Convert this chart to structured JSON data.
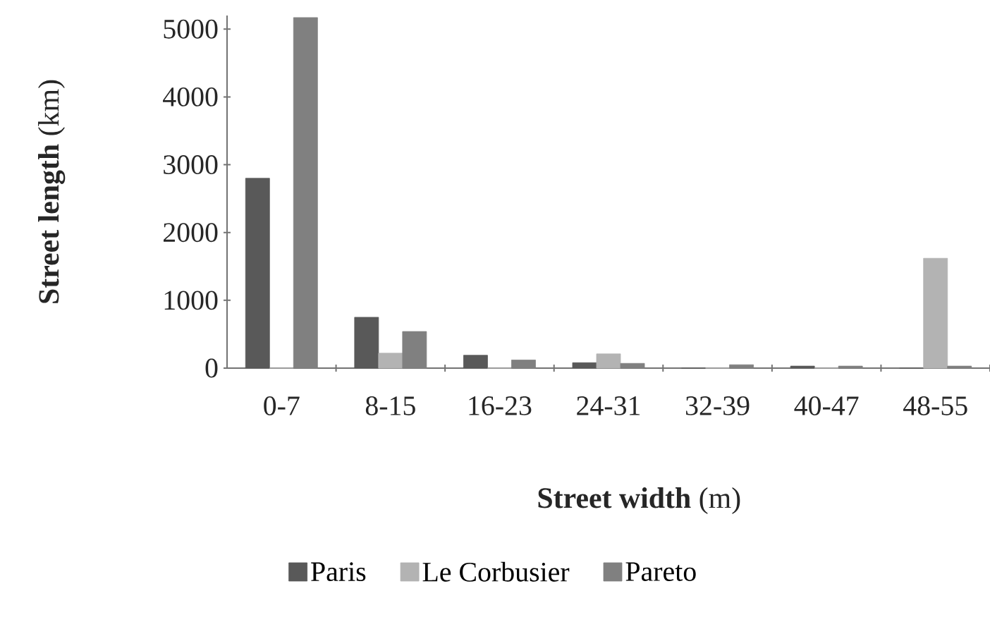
{
  "chart_data": {
    "type": "bar",
    "xlabel": "**Street width** (m)",
    "ylabel": "**Street length** (km)",
    "categories": [
      "0-7",
      "8-15",
      "16-23",
      "24-31",
      "32-39",
      "40-47",
      "48-55"
    ],
    "series": [
      {
        "name": "Paris",
        "color": "#595959",
        "values": [
          2800,
          750,
          190,
          80,
          0,
          30,
          0
        ]
      },
      {
        "name": "Le Corbusier",
        "color": "#b3b3b3",
        "values": [
          0,
          220,
          0,
          210,
          0,
          0,
          1620
        ]
      },
      {
        "name": "Pareto",
        "color": "#808080",
        "values": [
          5170,
          540,
          120,
          70,
          50,
          30,
          30
        ]
      }
    ],
    "ylim": [
      0,
      5200
    ],
    "yticks": [
      0,
      1000,
      2000,
      3000,
      4000,
      5000
    ],
    "grid": false,
    "legend": "bottom"
  }
}
